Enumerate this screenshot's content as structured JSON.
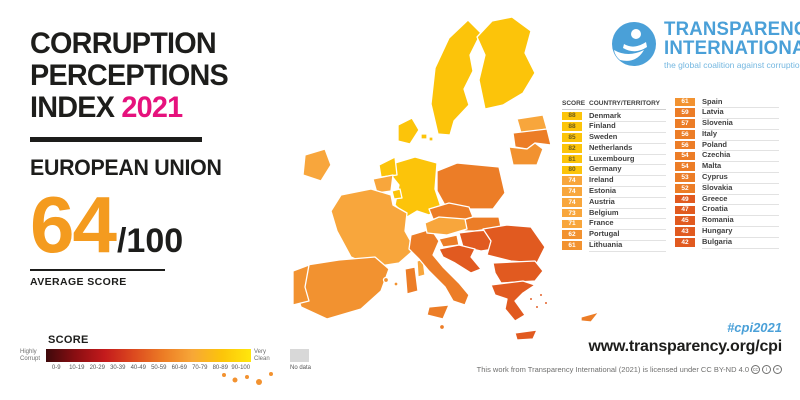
{
  "title": {
    "lines": [
      "CORRUPTION",
      "PERCEPTIONS",
      "INDEX"
    ],
    "year": "2021"
  },
  "region": {
    "name": "EUROPEAN UNION",
    "score": "64",
    "out_of": "/100",
    "caption": "AVERAGE SCORE"
  },
  "legend": {
    "heading": "SCORE",
    "low_label": "Highly Corrupt",
    "high_label": "Very Clean",
    "ticks": [
      "0-9",
      "10-19",
      "20-29",
      "30-39",
      "40-49",
      "50-59",
      "60-69",
      "70-79",
      "80-89",
      "90-100"
    ],
    "no_data_label": "No data",
    "no_data_color": "#D8D8D8",
    "gradient_stops": [
      "#3E090B",
      "#8A0E12",
      "#C31A1C",
      "#DC4A1F",
      "#EC7C25",
      "#F7A737",
      "#FCC40A",
      "#FFE70D"
    ]
  },
  "logo": {
    "line1": "TRANSPARENCY",
    "line2": "INTERNATIONAL",
    "tagline": "the global coalition against corruption",
    "color": "#4AA0D8",
    "tagline_color": "#74B7E0"
  },
  "table": {
    "headers": {
      "score": "SCORE",
      "country": "COUNTRY/TERRITORY"
    },
    "columns": [
      [
        {
          "score": 88,
          "country": "Denmark"
        },
        {
          "score": 88,
          "country": "Finland"
        },
        {
          "score": 85,
          "country": "Sweden"
        },
        {
          "score": 82,
          "country": "Netherlands"
        },
        {
          "score": 81,
          "country": "Luxembourg"
        },
        {
          "score": 80,
          "country": "Germany"
        },
        {
          "score": 74,
          "country": "Ireland"
        },
        {
          "score": 74,
          "country": "Estonia"
        },
        {
          "score": 74,
          "country": "Austria"
        },
        {
          "score": 73,
          "country": "Belgium"
        },
        {
          "score": 71,
          "country": "France"
        },
        {
          "score": 62,
          "country": "Portugal"
        },
        {
          "score": 61,
          "country": "Lithuania"
        }
      ],
      [
        {
          "score": 61,
          "country": "Spain"
        },
        {
          "score": 59,
          "country": "Latvia"
        },
        {
          "score": 57,
          "country": "Slovenia"
        },
        {
          "score": 56,
          "country": "Italy"
        },
        {
          "score": 56,
          "country": "Poland"
        },
        {
          "score": 54,
          "country": "Czechia"
        },
        {
          "score": 54,
          "country": "Malta"
        },
        {
          "score": 53,
          "country": "Cyprus"
        },
        {
          "score": 52,
          "country": "Slovakia"
        },
        {
          "score": 49,
          "country": "Greece"
        },
        {
          "score": 47,
          "country": "Croatia"
        },
        {
          "score": 45,
          "country": "Romania"
        },
        {
          "score": 43,
          "country": "Hungary"
        },
        {
          "score": 42,
          "country": "Bulgaria"
        }
      ]
    ]
  },
  "footer": {
    "hashtag": "#cpi2021",
    "url": "www.transparency.org/cpi",
    "license": "This work from Transparency International (2021) is licensed under CC BY-ND 4.0"
  },
  "score_bands": {
    "80": {
      "bg": "#FCC40A",
      "text": "#6D5C1E"
    },
    "70": {
      "bg": "#F8A63C",
      "text": "#FFFFFF"
    },
    "60": {
      "bg": "#F29230",
      "text": "#FFFFFF"
    },
    "50": {
      "bg": "#EC7D27",
      "text": "#FFFFFF"
    },
    "40": {
      "bg": "#E15A20",
      "text": "#FFFFFF"
    }
  },
  "accent": {
    "pink": "#E6127D",
    "orange": "#F49B1F",
    "blue": "#4AA0D8",
    "dark": "#1D1D1B"
  },
  "map": {
    "countries": {
      "sweden": 85,
      "finland": 88,
      "denmark": 88,
      "estonia": 74,
      "latvia": 59,
      "lithuania": 61,
      "poland": 56,
      "germany": 80,
      "netherlands": 82,
      "belgium": 73,
      "luxembourg": 81,
      "france": 71,
      "ireland": 74,
      "spain": 61,
      "portugal": 62,
      "italy": 56,
      "austria": 74,
      "czechia": 54,
      "slovakia": 52,
      "hungary": 43,
      "slovenia": 57,
      "croatia": 47,
      "romania": 45,
      "bulgaria": 42,
      "greece": 49,
      "malta": 54,
      "cyprus": 53
    }
  },
  "chart_data": {
    "type": "table",
    "title": "Corruption Perceptions Index 2021 — European Union",
    "columns": [
      "score",
      "country"
    ],
    "rows": [
      [
        88,
        "Denmark"
      ],
      [
        88,
        "Finland"
      ],
      [
        85,
        "Sweden"
      ],
      [
        82,
        "Netherlands"
      ],
      [
        81,
        "Luxembourg"
      ],
      [
        80,
        "Germany"
      ],
      [
        74,
        "Ireland"
      ],
      [
        74,
        "Estonia"
      ],
      [
        74,
        "Austria"
      ],
      [
        73,
        "Belgium"
      ],
      [
        71,
        "France"
      ],
      [
        62,
        "Portugal"
      ],
      [
        61,
        "Lithuania"
      ],
      [
        61,
        "Spain"
      ],
      [
        59,
        "Latvia"
      ],
      [
        57,
        "Slovenia"
      ],
      [
        56,
        "Italy"
      ],
      [
        56,
        "Poland"
      ],
      [
        54,
        "Czechia"
      ],
      [
        54,
        "Malta"
      ],
      [
        53,
        "Cyprus"
      ],
      [
        52,
        "Slovakia"
      ],
      [
        49,
        "Greece"
      ],
      [
        47,
        "Croatia"
      ],
      [
        45,
        "Romania"
      ],
      [
        43,
        "Hungary"
      ],
      [
        42,
        "Bulgaria"
      ]
    ],
    "average_score": 64,
    "scale": [
      0,
      100
    ]
  }
}
